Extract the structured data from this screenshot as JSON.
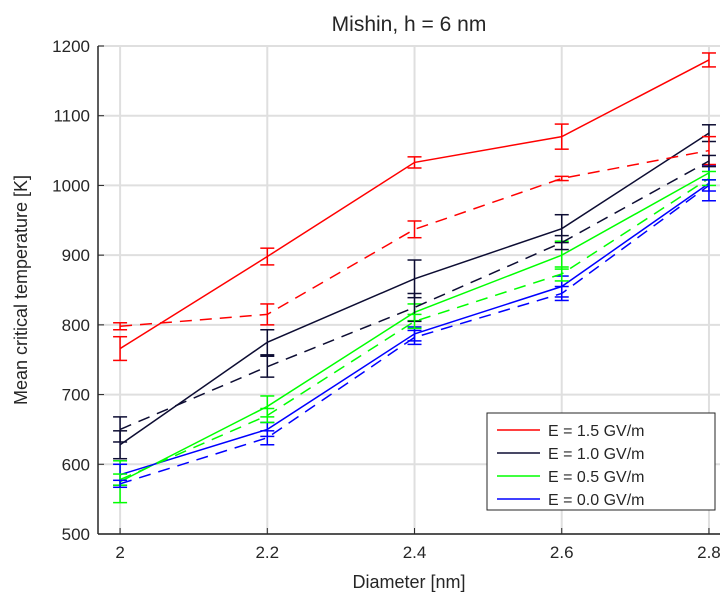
{
  "chart_data": {
    "type": "line",
    "title": "Mishin, h = 6 nm",
    "xlabel": "Diameter [nm]",
    "ylabel": "Mean critical temperature [K]",
    "xlim": [
      1.97,
      2.815
    ],
    "ylim": [
      500,
      1200
    ],
    "xticks": [
      2,
      2.2,
      2.4,
      2.6,
      2.8
    ],
    "xtick_labels": [
      "2",
      "2.2",
      "2.4",
      "2.6",
      "2.8"
    ],
    "yticks": [
      500,
      600,
      700,
      800,
      900,
      1000,
      1100,
      1200
    ],
    "ytick_labels": [
      "500",
      "600",
      "700",
      "800",
      "900",
      "1000",
      "1100",
      "1200"
    ],
    "grid": true,
    "legend_placement": "bottom-right",
    "x": [
      2,
      2.2,
      2.4,
      2.6,
      2.8
    ],
    "series": [
      {
        "name": "E = 1.5 GV/m",
        "color": "#ff0000",
        "style": "solid",
        "values": [
          766,
          898,
          1033,
          1070,
          1180
        ],
        "errors": [
          17,
          12,
          8,
          18,
          10
        ]
      },
      {
        "name": "E = 1.0 GV/m",
        "color": "#0d0d33",
        "style": "solid",
        "values": [
          628,
          775,
          866,
          938,
          1075
        ],
        "errors": [
          20,
          18,
          27,
          20,
          12
        ]
      },
      {
        "name": "E = 0.5 GV/m",
        "color": "#00ff00",
        "style": "solid",
        "values": [
          575,
          683,
          818,
          900,
          1018
        ],
        "errors": [
          30,
          15,
          12,
          20,
          10
        ]
      },
      {
        "name": "E = 0.0 GV/m",
        "color": "#0000ff",
        "style": "solid",
        "values": [
          585,
          650,
          787,
          855,
          1003
        ],
        "errors": [
          15,
          10,
          10,
          15,
          25
        ]
      },
      {
        "color": "#ff0000",
        "style": "dashed",
        "values": [
          798,
          815,
          937,
          1010,
          1050
        ],
        "errors": [
          5,
          15,
          12,
          3,
          20
        ]
      },
      {
        "color": "#0d0d33",
        "style": "dashed",
        "values": [
          650,
          740,
          825,
          918,
          1035
        ],
        "errors": [
          18,
          15,
          20,
          10,
          8
        ]
      },
      {
        "color": "#00ff00",
        "style": "dashed",
        "values": [
          578,
          670,
          805,
          873,
          1010
        ],
        "errors": [
          8,
          10,
          10,
          10,
          10
        ]
      },
      {
        "color": "#0000ff",
        "style": "dashed",
        "values": [
          572,
          638,
          782,
          845,
          1000
        ],
        "errors": [
          5,
          10,
          10,
          10,
          8
        ]
      }
    ]
  }
}
